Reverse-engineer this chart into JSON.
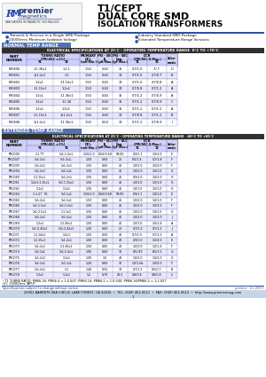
{
  "title_line1": "T1/CEPT",
  "title_line2": "DUAL CORE SMD",
  "title_line3": "ISOLATION TRANSFORMERS",
  "bullet1": "Transmit & Receive in a Single SMD Package",
  "bullet2": "2000Vrms Minimum Isolation Voltage",
  "bullet3": "Industry Standard SMD Package",
  "bullet4": "Extended Temperature Range Versions",
  "normal_range_label": "NORMAL TEMP RANGE",
  "normal_spec_header": "ELECTRICAL SPECIFICATIONS AT 25°C - OPERATING TEMPERATURE RANGE  0°C TO +70°C",
  "extended_range_label": "EXTENDED TEMP RANGE",
  "extended_spec_header": "ELECTRICAL SPECIFICATIONS AT 25°C - OPERATING TEMPERATURE RANGE  -40°C TO +85°C",
  "normal_rows": [
    [
      "PM-B00",
      "1:1.36x1",
      "1:1:1",
      "1.50",
      "0.40",
      "35",
      "0.7/1.0",
      ".7/.7",
      "D"
    ],
    [
      "PM-B01",
      "1x1:2x1",
      "1:1",
      "1.50",
      "0.40",
      "30",
      "0.7/1.0",
      "0.7/0.7",
      "B"
    ],
    [
      "PM-B02",
      "1:2x1",
      "1:1.15x1",
      "1.50",
      "0.40",
      "30",
      "0.7/1.0",
      "0.7/0.8",
      "A"
    ],
    [
      "PM-B03",
      "1:1.15x1",
      "1:2x1",
      "1.50",
      "0.40",
      "30",
      "0.7/0.8",
      "0.7/1.2",
      "A"
    ],
    [
      "PM-B04",
      "1:2x1",
      "1:1.36x1",
      "1.50",
      "0.40",
      "35",
      "0.7/1.2",
      "0.7/0.9",
      "A"
    ],
    [
      "PM-B05",
      "1:2x1",
      "1:1.36",
      "1.50",
      "0.40",
      "35",
      "0.7/1.2",
      "0.7/0.9",
      "C"
    ],
    [
      "PM-B06",
      "1:2x1",
      "1:2x1",
      "1.50",
      "0.40",
      "35",
      "0.7/1.2",
      "0.7/1.2",
      "A"
    ],
    [
      "PM-B07",
      "1:1.15x1",
      "1x1:2x1",
      "1.50",
      "0.40",
      "30",
      "0.7/0.8",
      "0.7/1.2",
      "B"
    ],
    [
      "PM-B08",
      "1x1:2x1",
      "1:1.36x1",
      "1.50",
      "0.60",
      "30",
      "0.7/1.2",
      "0.7/0.9",
      "I"
    ]
  ],
  "extended_rows": [
    [
      "PM-D00",
      "1:1.7T",
      "1x1:1:2x1",
      "1.50/2.0",
      "0.50/0.60",
      "50/45",
      "0.9/1.1",
      "1.0/2.0",
      "E"
    ],
    [
      "PM-D02*",
      "1x1:2x1",
      "1x1:2x1-",
      "1.50",
      "0.60",
      "25",
      "0.5/1.4-",
      "0.7/1.8",
      "F"
    ],
    [
      "PM-D03",
      "1x1:2x1",
      "1x1:2x1",
      "1.50",
      "0.60",
      "45",
      "1.0/2.0",
      "1.0/2.0",
      "F"
    ],
    [
      "PM-D04",
      "1x1:2x1",
      "1x1:1x1",
      "1.50",
      "0.60",
      "45",
      "1.0/2.0",
      "1.0/1.0",
      "G"
    ],
    [
      "PM-D60",
      "1:1.15x1",
      "1x1:2x1",
      "1.50",
      "0.60",
      "45",
      "0.9/1.0",
      "1.0/2.0",
      "H"
    ],
    [
      "PM-D61",
      "1:2x1:1.15x1",
      "1x1:1.15x1",
      "1.50",
      "0.60",
      "45",
      "1.0/1.0",
      "1.0/1.0",
      "G"
    ],
    [
      "PM-D62",
      "1:1x1",
      "1:1x1",
      "1.50",
      "0.60",
      "45",
      "1.0/1.0",
      "1.0/1.0",
      "G"
    ],
    [
      "PM-D64",
      "1:1.27  T6",
      "1x1:1x1",
      "1.50/2.0",
      "0.60/0.60",
      "50/45",
      "0.9/1.1",
      "1.0/1.0",
      "E"
    ],
    [
      "PM-D65",
      "1x1:2x1",
      "1x1:1x1",
      "1.50",
      "0.60",
      "45",
      "1.0/2.0",
      "1.0/1.0",
      "F"
    ],
    [
      "PM-D66",
      "1x1:1.5x1",
      "1x1:1.5x1",
      "1.50",
      "0.60",
      "45",
      "1.0/2.0",
      "1.0/2.0",
      "F"
    ],
    [
      "PM-D67",
      "1x1:2.5x1",
      "1:1.1x1",
      "1.50",
      "0.60",
      "45",
      "1.0/2.0",
      "1.0/1.0",
      "G"
    ],
    [
      "PM-D68",
      "1x1:2x1",
      "1x1:2x1",
      "1.50",
      "0.60",
      "45",
      "1.0/2.0",
      "1.0/2.0",
      "J"
    ],
    [
      "PM-D69",
      "1:2x1",
      "1:1.36x1",
      "1.50",
      "0.60",
      "45",
      "1.0/1.0",
      "1.0/1.4",
      "A"
    ],
    [
      "PM-D70",
      "1x1:2.42x1",
      "1x1:2.42x1",
      "1.20",
      "0.60",
      "25",
      "0.7/1.2",
      "0.7/1.2",
      "J"
    ],
    [
      "PM-D71",
      "1:1.14x1",
      "1:2x1",
      "1.50",
      "0.50",
      "40",
      "0.7/0.9",
      "0.7/1.2",
      "A"
    ],
    [
      "PM-D72",
      "1:1.15x1",
      "1x1:2x1",
      "1.50",
      "0.60",
      "40",
      "0.9/1.0",
      "1.0/2.0",
      "E"
    ],
    [
      "PM-D73",
      "1x1:2x1",
      "1:1.36x1",
      "1.50",
      "0.60",
      "40",
      "1.0/2.0",
      "1.0/1.4",
      "F"
    ],
    [
      "PM-D74",
      "1x1:1x1",
      "1x1:2.4x1",
      "1.00",
      "0.60",
      "30",
      ".85/.85",
      ".85/1.5",
      "G"
    ],
    [
      "PM-D75",
      "1x1:2x1",
      "1:1x1",
      "1.00",
      "1.0",
      "40",
      "1.0/2.0",
      "1.0/2.0",
      "G"
    ],
    [
      "PM-D76",
      "1x1:1x1",
      "1x1:1x1",
      "1.20",
      "0.60",
      "30",
      "1.0/1.0b",
      "1.0/2.0",
      "F"
    ],
    [
      "PM-D77",
      "1x1:2x1",
      "1:1",
      "1.40",
      "0.50",
      "30",
      "0.7/1.2",
      "0.5/0.7",
      "B"
    ],
    [
      "PM-D78",
      "1:1x1",
      "1:1x1",
      "1.2",
      "0.70",
      "22.5",
      "0.8/0.8",
      "0.8/0.8",
      "k"
    ]
  ],
  "footnote1": "¹ T1 TURNS RATIO: PM66.16: PM66.4 = 1:0.507, PM66.14: PM66.2 = 1:0.500, PM66.16/PM66.2 = 1:1.027",
  "footnote2": "(2): 1500Vrms INPUT",
  "footnote3": "Specifications subject to change without notice.",
  "footer": "20351 BARENTS SEA CIRCLE, LAKE FOREST, CA 92630  •  TEL: (949) 452-0511  •  FAX: (949) 452-0512  •  http://www.premiermag.com",
  "page_num": "1",
  "bg_color": "#ffffff",
  "table_header_bg": "#d0d0f8",
  "table_row_bg2": "#e8e8f8",
  "section_label_bg": "#5070b0",
  "spec_header_bg": "#303030",
  "blue_line_color": "#3050a0",
  "footer_bg": "#c8d4e8"
}
